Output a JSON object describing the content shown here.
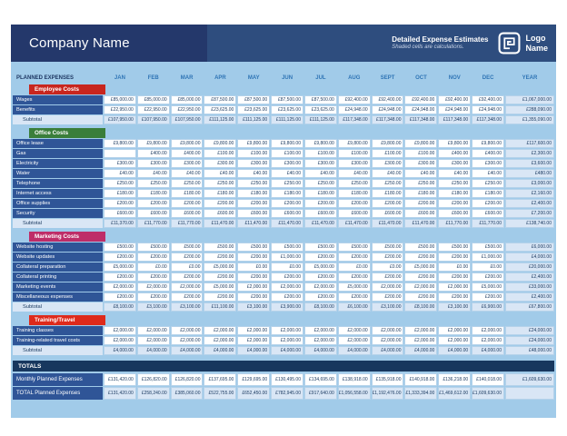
{
  "header": {
    "company_name": "Company Name",
    "subtitle": "Detailed Expense Estimates",
    "note": "Shaded cells are calculations.",
    "logo_lines": [
      "Logo",
      "Name"
    ]
  },
  "columns": {
    "label": "PLANNED EXPENSES",
    "months": [
      "JAN",
      "FEB",
      "MAR",
      "APR",
      "MAY",
      "JUN",
      "JUL",
      "AUG",
      "SEPT",
      "OCT",
      "NOV",
      "DEC"
    ],
    "year": "YEAR"
  },
  "palette": {
    "header_left_bg": "#24386B",
    "header_right_bg": "#2E4D7E",
    "sheet_bg": "#A1CBE9",
    "row_label_bg": "#2F5597",
    "shaded_cell_bg": "#D9E6F5",
    "totals_bar_bg": "#17375E"
  },
  "sections": [
    {
      "title": "Employee Costs",
      "color": "#C8261E",
      "rows": [
        {
          "label": "Wages",
          "values": [
            "£85,000.00",
            "£85,000.00",
            "£85,000.00",
            "£87,500.00",
            "£87,500.00",
            "£87,500.00",
            "£87,500.00",
            "£92,400.00",
            "£92,400.00",
            "£92,400.00",
            "£92,400.00",
            "£92,400.00"
          ],
          "year": "£1,067,000.00"
        },
        {
          "label": "Benefits",
          "values": [
            "£22,950.00",
            "£22,950.00",
            "£22,950.00",
            "£23,625.00",
            "£23,625.00",
            "£23,625.00",
            "£23,625.00",
            "£24,948.00",
            "£24,948.00",
            "£24,948.00",
            "£24,948.00",
            "£24,948.00"
          ],
          "year": "£288,090.00"
        }
      ],
      "subtotal": {
        "label": "Subtotal",
        "values": [
          "£107,950.00",
          "£107,950.00",
          "£107,950.00",
          "£111,125.00",
          "£111,125.00",
          "£111,125.00",
          "£111,125.00",
          "£117,348.00",
          "£117,348.00",
          "£117,348.00",
          "£117,348.00",
          "£117,348.00"
        ],
        "year": "£1,355,090.00"
      }
    },
    {
      "title": "Office Costs",
      "color": "#3A7E3A",
      "rows": [
        {
          "label": "Office lease",
          "values": [
            "£9,800.00",
            "£9,800.00",
            "£9,800.00",
            "£9,800.00",
            "£9,800.00",
            "£9,800.00",
            "£9,800.00",
            "£9,800.00",
            "£9,800.00",
            "£9,800.00",
            "£9,800.00",
            "£9,800.00"
          ],
          "year": "£117,600.00"
        },
        {
          "label": "Gas",
          "values": [
            "",
            "£400.00",
            "£400.00",
            "£100.00",
            "£100.00",
            "£100.00",
            "£100.00",
            "£100.00",
            "£100.00",
            "£100.00",
            "£400.00",
            "£400.00"
          ],
          "year": "£2,300.00"
        },
        {
          "label": "Electricity",
          "values": [
            "£300.00",
            "£300.00",
            "£300.00",
            "£300.00",
            "£300.00",
            "£300.00",
            "£300.00",
            "£300.00",
            "£300.00",
            "£300.00",
            "£300.00",
            "£300.00"
          ],
          "year": "£3,600.00"
        },
        {
          "label": "Water",
          "values": [
            "£40.00",
            "£40.00",
            "£40.00",
            "£40.00",
            "£40.00",
            "£40.00",
            "£40.00",
            "£40.00",
            "£40.00",
            "£40.00",
            "£40.00",
            "£40.00"
          ],
          "year": "£480.00"
        },
        {
          "label": "Telephone",
          "values": [
            "£250.00",
            "£250.00",
            "£250.00",
            "£250.00",
            "£250.00",
            "£250.00",
            "£250.00",
            "£250.00",
            "£250.00",
            "£250.00",
            "£250.00",
            "£250.00"
          ],
          "year": "£3,000.00"
        },
        {
          "label": "Internet access",
          "values": [
            "£180.00",
            "£180.00",
            "£180.00",
            "£180.00",
            "£180.00",
            "£180.00",
            "£180.00",
            "£180.00",
            "£180.00",
            "£180.00",
            "£180.00",
            "£180.00"
          ],
          "year": "£2,160.00"
        },
        {
          "label": "Office supplies",
          "values": [
            "£200.00",
            "£200.00",
            "£200.00",
            "£200.00",
            "£200.00",
            "£200.00",
            "£200.00",
            "£200.00",
            "£200.00",
            "£200.00",
            "£200.00",
            "£200.00"
          ],
          "year": "£2,400.00"
        },
        {
          "label": "Security",
          "values": [
            "£600.00",
            "£600.00",
            "£600.00",
            "£600.00",
            "£600.00",
            "£600.00",
            "£600.00",
            "£600.00",
            "£600.00",
            "£600.00",
            "£600.00",
            "£600.00"
          ],
          "year": "£7,200.00"
        }
      ],
      "subtotal": {
        "label": "Subtotal",
        "values": [
          "£11,370.00",
          "£11,770.00",
          "£11,770.00",
          "£11,470.00",
          "£11,470.00",
          "£11,470.00",
          "£11,470.00",
          "£11,470.00",
          "£11,470.00",
          "£11,470.00",
          "£11,770.00",
          "£11,770.00"
        ],
        "year": "£138,740.00"
      }
    },
    {
      "title": "Marketing Costs",
      "color": "#BE2D68",
      "rows": [
        {
          "label": "Website hosting",
          "values": [
            "£500.00",
            "£500.00",
            "£500.00",
            "£500.00",
            "£500.00",
            "£500.00",
            "£500.00",
            "£500.00",
            "£500.00",
            "£500.00",
            "£500.00",
            "£500.00"
          ],
          "year": "£6,000.00"
        },
        {
          "label": "Website updates",
          "values": [
            "£200.00",
            "£200.00",
            "£200.00",
            "£200.00",
            "£200.00",
            "£1,000.00",
            "£200.00",
            "£200.00",
            "£200.00",
            "£200.00",
            "£200.00",
            "£1,000.00"
          ],
          "year": "£4,000.00"
        },
        {
          "label": "Collateral preparation",
          "values": [
            "£5,000.00",
            "£0.00",
            "£0.00",
            "£5,000.00",
            "£0.00",
            "£0.00",
            "£5,000.00",
            "£0.00",
            "£0.00",
            "£5,000.00",
            "£0.00",
            "£0.00"
          ],
          "year": "£20,000.00"
        },
        {
          "label": "Collateral printing",
          "values": [
            "£200.00",
            "£200.00",
            "£200.00",
            "£200.00",
            "£200.00",
            "£200.00",
            "£200.00",
            "£200.00",
            "£200.00",
            "£200.00",
            "£200.00",
            "£200.00"
          ],
          "year": "£2,400.00"
        },
        {
          "label": "Marketing events",
          "values": [
            "£2,000.00",
            "£2,000.00",
            "£2,000.00",
            "£5,000.00",
            "£2,000.00",
            "£2,000.00",
            "£2,000.00",
            "£5,000.00",
            "£2,000.00",
            "£2,000.00",
            "£2,000.00",
            "£5,000.00"
          ],
          "year": "£33,000.00"
        },
        {
          "label": "Miscellaneous expenses",
          "values": [
            "£200.00",
            "£200.00",
            "£200.00",
            "£200.00",
            "£200.00",
            "£200.00",
            "£200.00",
            "£200.00",
            "£200.00",
            "£200.00",
            "£200.00",
            "£200.00"
          ],
          "year": "£2,400.00"
        }
      ],
      "subtotal": {
        "label": "Subtotal",
        "values": [
          "£8,100.00",
          "£3,100.00",
          "£3,100.00",
          "£11,100.00",
          "£3,100.00",
          "£3,900.00",
          "£8,100.00",
          "£6,100.00",
          "£3,100.00",
          "£8,100.00",
          "£3,100.00",
          "£6,900.00"
        ],
        "year": "£67,800.00"
      }
    },
    {
      "title": "Training/Travel",
      "color": "#DE2A1B",
      "rows": [
        {
          "label": "Training classes",
          "values": [
            "£2,000.00",
            "£2,000.00",
            "£2,000.00",
            "£2,000.00",
            "£2,000.00",
            "£2,000.00",
            "£2,000.00",
            "£2,000.00",
            "£2,000.00",
            "£2,000.00",
            "£2,000.00",
            "£2,000.00"
          ],
          "year": "£24,000.00"
        },
        {
          "label": "Training-related travel costs",
          "values": [
            "£2,000.00",
            "£2,000.00",
            "£2,000.00",
            "£2,000.00",
            "£2,000.00",
            "£2,000.00",
            "£2,000.00",
            "£2,000.00",
            "£2,000.00",
            "£2,000.00",
            "£2,000.00",
            "£2,000.00"
          ],
          "year": "£24,000.00"
        }
      ],
      "subtotal": {
        "label": "Subtotal",
        "values": [
          "£4,000.00",
          "£4,000.00",
          "£4,000.00",
          "£4,000.00",
          "£4,000.00",
          "£4,000.00",
          "£4,000.00",
          "£4,000.00",
          "£4,000.00",
          "£4,000.00",
          "£4,000.00",
          "£4,000.00"
        ],
        "year": "£48,000.00"
      }
    }
  ],
  "totals": {
    "title": "TOTALS",
    "rows": [
      {
        "label": "Monthly Planned Expenses",
        "shaded": false,
        "values": [
          "£131,420.00",
          "£126,820.00",
          "£126,820.00",
          "£137,695.00",
          "£129,695.00",
          "£130,495.00",
          "£134,695.00",
          "£138,918.00",
          "£135,918.00",
          "£140,918.00",
          "£136,218.00",
          "£140,018.00"
        ],
        "year": "£1,609,630.00"
      },
      {
        "label": "TOTAL Planned Expenses",
        "shaded": true,
        "values": [
          "£131,420.00",
          "£258,240.00",
          "£385,060.00",
          "£522,755.00",
          "£652,450.00",
          "£782,945.00",
          "£917,640.00",
          "£1,056,558.00",
          "£1,192,476.00",
          "£1,333,394.00",
          "£1,469,612.00",
          "£1,609,630.00"
        ],
        "year": ""
      }
    ]
  }
}
